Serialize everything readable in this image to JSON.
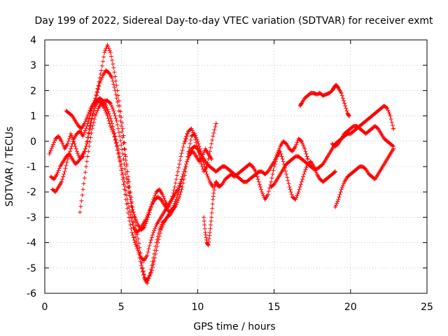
{
  "chart_data": {
    "type": "scatter",
    "title": "Day 199 of 2022, Sidereal Day-to-day VTEC variation (SDTVAR) for receiver exmt",
    "xlabel": "GPS time / hours",
    "ylabel": "SDTVAR / TECUs",
    "xlim": [
      0,
      25
    ],
    "ylim": [
      -6,
      4
    ],
    "xticks": [
      0,
      5,
      10,
      15,
      20,
      25
    ],
    "yticks": [
      -6,
      -5,
      -4,
      -3,
      -2,
      -1,
      0,
      1,
      2,
      3,
      4
    ],
    "grid": true,
    "marker": "+",
    "color": "#ff0000",
    "series": [
      {
        "x": [
          0.3,
          0.5,
          0.7,
          0.9,
          1.1,
          1.3,
          1.5,
          1.7,
          1.9,
          2.1,
          2.3,
          2.5,
          2.7,
          2.9,
          3.1,
          3.3,
          3.5,
          3.7,
          3.9,
          4.1,
          4.3,
          4.5,
          4.7,
          4.9,
          5.1,
          5.3,
          5.5,
          5.7,
          5.9,
          6.1,
          6.3,
          6.5,
          6.7,
          6.9,
          7.1,
          7.3,
          7.5,
          7.7,
          7.9,
          8.1,
          8.3,
          8.5,
          8.7,
          8.9,
          9.1,
          9.3,
          9.5,
          9.7,
          9.9,
          10.1,
          10.3,
          10.5,
          10.7,
          10.9
        ],
        "y": [
          -0.5,
          -0.2,
          0.1,
          0.2,
          0.0,
          -0.3,
          -0.1,
          0.3,
          0.0,
          -0.4,
          -0.7,
          -0.6,
          -0.2,
          0.5,
          1.0,
          1.4,
          1.6,
          1.5,
          1.3,
          1.0,
          0.6,
          0.3,
          -0.2,
          -0.8,
          -1.5,
          -2.3,
          -3.0,
          -3.6,
          -4.0,
          -4.3,
          -4.6,
          -4.7,
          -4.5,
          -4.0,
          -3.6,
          -3.3,
          -3.1,
          -2.9,
          -2.7,
          -2.5,
          -2.3,
          -2.1,
          -1.9,
          -1.6,
          -1.2,
          -0.8,
          -0.5,
          -0.4,
          -0.6,
          -0.8,
          -0.6,
          -0.3,
          -0.5,
          -0.7
        ]
      },
      {
        "x": [
          0.4,
          0.6,
          0.8,
          1.0,
          1.2,
          1.4,
          1.6,
          1.8,
          2.0,
          2.2,
          2.4,
          2.6,
          2.8,
          3.0,
          3.2,
          3.4,
          3.6,
          3.8,
          4.0,
          4.2,
          4.4,
          4.6,
          4.8,
          5.0,
          5.2,
          5.4,
          5.6,
          5.8,
          6.0,
          6.2,
          6.4,
          6.6,
          6.8,
          7.0,
          7.2,
          7.4,
          7.6,
          7.8,
          8.0,
          8.2,
          8.4,
          8.6,
          8.8,
          9.0,
          9.2,
          9.4,
          9.6,
          9.8,
          10.0,
          10.2,
          10.4,
          10.6,
          10.8,
          11.0
        ],
        "y": [
          -1.4,
          -1.5,
          -1.3,
          -1.0,
          -0.8,
          -0.6,
          -0.5,
          -0.7,
          -0.9,
          -0.8,
          -0.6,
          -0.4,
          0.0,
          0.6,
          1.2,
          1.8,
          2.3,
          2.6,
          2.8,
          2.7,
          2.5,
          2.0,
          1.4,
          0.6,
          -0.3,
          -1.2,
          -2.0,
          -2.8,
          -3.5,
          -4.2,
          -5.0,
          -5.5,
          -5.4,
          -5.1,
          -4.6,
          -4.0,
          -3.5,
          -3.2,
          -3.0,
          -2.9,
          -2.7,
          -2.5,
          -2.2,
          -1.8,
          -1.2,
          -0.4,
          0.2,
          0.3,
          0.0,
          -0.4,
          -0.9,
          -1.3,
          -1.6,
          -1.8
        ]
      },
      {
        "x": [
          0.5,
          0.7,
          0.9,
          1.1,
          1.3,
          1.5,
          1.7,
          1.9,
          2.1,
          2.3,
          2.5,
          2.7,
          2.9,
          3.1,
          3.3,
          3.5,
          3.7,
          3.9,
          4.1,
          4.3,
          4.5,
          4.7,
          4.9,
          5.1,
          5.3,
          5.5,
          5.7,
          5.9,
          6.1,
          6.3,
          6.5,
          6.7,
          6.9,
          7.1,
          7.3,
          7.5,
          7.7,
          7.9,
          8.1,
          8.3,
          8.5
        ],
        "y": [
          -1.9,
          -2.0,
          -1.8,
          -1.6,
          -1.2,
          -0.7,
          -0.3,
          0.1,
          0.3,
          0.4,
          0.2,
          0.5,
          0.9,
          1.3,
          1.7,
          2.2,
          2.8,
          3.5,
          3.8,
          3.5,
          2.9,
          2.2,
          1.4,
          0.5,
          -0.6,
          -1.8,
          -2.8,
          -3.6,
          -4.3,
          -4.9,
          -5.4,
          -5.6,
          -5.2,
          -4.6,
          -4.0,
          -3.5,
          -3.2,
          -3.1,
          -2.9,
          -2.7,
          -2.6
        ]
      },
      {
        "x": [
          1.4,
          1.6,
          1.8,
          2.0,
          2.2,
          2.4,
          2.6,
          2.8,
          3.0,
          3.2,
          3.4,
          3.6,
          3.8,
          4.0,
          4.2,
          4.4,
          4.6,
          4.8,
          5.0,
          5.2,
          5.4,
          5.6,
          5.8,
          6.0,
          6.2,
          6.4,
          6.6,
          6.8,
          7.0,
          7.2,
          7.4,
          7.6,
          7.8,
          8.0,
          8.2,
          8.4,
          8.6,
          8.8,
          9.0
        ],
        "y": [
          1.2,
          1.1,
          1.0,
          0.8,
          0.6,
          0.5,
          0.7,
          1.0,
          1.3,
          1.5,
          1.6,
          1.7,
          1.6,
          1.4,
          1.1,
          0.7,
          0.2,
          -0.3,
          -0.9,
          -1.6,
          -2.3,
          -2.9,
          -3.4,
          -3.6,
          -3.5,
          -3.3,
          -3.1,
          -2.8,
          -2.5,
          -2.3,
          -2.2,
          -2.3,
          -2.5,
          -2.7,
          -2.8,
          -2.6,
          -2.3,
          -1.9,
          -1.4
        ]
      },
      {
        "x": [
          2.3,
          2.5,
          2.7,
          2.9,
          3.1,
          3.3,
          3.5,
          3.7,
          3.9,
          4.1,
          4.3,
          4.5,
          4.7,
          4.9,
          5.1,
          5.3,
          5.5,
          5.7,
          5.9,
          6.1,
          6.3,
          6.5,
          6.7,
          6.9,
          7.1,
          7.3,
          7.5,
          7.7,
          7.9,
          8.1,
          8.3,
          8.5,
          8.7,
          8.9,
          9.1,
          9.3
        ],
        "y": [
          -2.8,
          -1.9,
          -1.0,
          -0.2,
          0.5,
          1.0,
          1.3,
          1.5,
          1.6,
          1.6,
          1.5,
          1.2,
          0.8,
          0.2,
          -0.5,
          -1.3,
          -2.0,
          -2.6,
          -3.0,
          -3.3,
          -3.5,
          -3.4,
          -3.1,
          -2.7,
          -2.3,
          -2.0,
          -1.9,
          -2.1,
          -2.4,
          -2.6,
          -2.3,
          -1.8,
          -1.2,
          -0.6,
          -0.1,
          0.3
        ]
      },
      {
        "x": [
          9.2,
          9.4,
          9.6,
          9.8,
          10.0,
          10.2,
          10.4,
          10.6,
          10.8,
          11.0,
          11.2
        ],
        "y": [
          0.0,
          0.4,
          0.5,
          0.2,
          -0.3,
          -0.8,
          -1.2,
          -1.0,
          -0.4,
          0.2,
          0.7
        ]
      },
      {
        "x": [
          10.4,
          10.5,
          10.6,
          10.7,
          10.8,
          10.9,
          11.0,
          11.1,
          11.2,
          11.3,
          11.4,
          11.6,
          11.8,
          12.0,
          12.2,
          12.4,
          12.6,
          12.8,
          13.0,
          13.2,
          13.4,
          13.6,
          13.8,
          14.0,
          14.2,
          14.4,
          14.6,
          14.8,
          15.0,
          15.2,
          15.4,
          15.6,
          15.8,
          16.0,
          16.2,
          16.4,
          16.6,
          16.8,
          17.0,
          17.2,
          17.4,
          17.6,
          17.8,
          18.0,
          18.2,
          18.4,
          18.6,
          18.8,
          19.0
        ],
        "y": [
          -3.0,
          -3.6,
          -4.0,
          -4.1,
          -3.6,
          -3.0,
          -2.3,
          -1.8,
          -1.6,
          -1.7,
          -1.8,
          -1.7,
          -1.5,
          -1.4,
          -1.3,
          -1.4,
          -1.3,
          -1.2,
          -1.1,
          -1.0,
          -0.9,
          -1.0,
          -1.2,
          -1.6,
          -2.0,
          -2.3,
          -2.1,
          -1.6,
          -1.0,
          -0.6,
          -0.4,
          -0.8,
          -1.3,
          -1.8,
          -2.2,
          -2.3,
          -2.0,
          -1.6,
          -1.2,
          -0.9,
          -0.8,
          -1.0,
          -1.3,
          -1.5,
          -1.6,
          -1.5,
          -1.4,
          -1.3,
          -1.2
        ]
      },
      {
        "x": [
          9.4,
          9.6,
          9.8,
          10.0,
          10.2,
          10.4,
          10.6,
          10.8,
          11.0,
          11.2,
          11.4,
          11.6,
          11.8,
          12.0,
          12.2,
          12.4,
          12.6,
          12.8,
          13.0,
          13.2,
          13.4,
          13.6,
          13.8,
          14.0,
          14.2,
          14.4,
          14.6,
          14.8,
          15.0,
          15.2,
          15.4,
          15.6,
          15.8,
          16.0,
          16.2,
          16.4,
          16.6,
          16.8,
          17.0,
          17.2
        ],
        "y": [
          -0.5,
          -0.3,
          -0.2,
          -0.3,
          -0.5,
          -0.7,
          -0.9,
          -1.0,
          -1.1,
          -1.2,
          -1.1,
          -1.0,
          -1.0,
          -1.1,
          -1.2,
          -1.3,
          -1.4,
          -1.5,
          -1.6,
          -1.6,
          -1.5,
          -1.4,
          -1.3,
          -1.2,
          -1.2,
          -1.3,
          -1.2,
          -1.0,
          -0.8,
          -0.5,
          -0.2,
          0.0,
          -0.1,
          -0.3,
          -0.4,
          -0.2,
          0.1,
          0.0,
          -0.3,
          -0.7
        ]
      },
      {
        "x": [
          14.8,
          15.0,
          15.2,
          15.4,
          15.6,
          15.8,
          16.0,
          16.2,
          16.4,
          16.6,
          16.8,
          17.0,
          17.2,
          17.4,
          17.6,
          17.8,
          18.0,
          18.2,
          18.4,
          18.6,
          18.8,
          19.0,
          19.2,
          19.4,
          19.6,
          19.8,
          20.0,
          20.2,
          20.4,
          20.6,
          20.8,
          21.0,
          21.2,
          21.4,
          21.6,
          21.8,
          22.0,
          22.2,
          22.4,
          22.6,
          22.8
        ],
        "y": [
          -1.8,
          -1.7,
          -1.5,
          -1.3,
          -1.1,
          -0.9,
          -0.8,
          -0.7,
          -0.6,
          -0.6,
          -0.7,
          -0.8,
          -0.9,
          -1.0,
          -1.1,
          -1.1,
          -1.0,
          -0.9,
          -0.7,
          -0.5,
          -0.3,
          -0.1,
          0.0,
          0.1,
          0.2,
          0.3,
          0.3,
          0.4,
          0.5,
          0.6,
          0.7,
          0.8,
          0.9,
          1.0,
          1.1,
          1.2,
          1.3,
          1.4,
          1.3,
          1.0,
          0.5
        ]
      },
      {
        "x": [
          16.7,
          16.8,
          17.0,
          17.2,
          17.4,
          17.6,
          17.8,
          18.0,
          18.2,
          18.4,
          18.6,
          18.8,
          18.9,
          19.0,
          19.1,
          19.2,
          19.4,
          19.6,
          19.8,
          19.9
        ],
        "y": [
          1.4,
          1.5,
          1.7,
          1.8,
          1.9,
          1.9,
          1.85,
          1.9,
          1.8,
          1.85,
          1.9,
          2.0,
          2.1,
          2.2,
          2.2,
          2.1,
          1.9,
          1.5,
          1.1,
          1.0
        ]
      },
      {
        "x": [
          19.0,
          19.2,
          19.4,
          19.6,
          19.8,
          20.0,
          20.2,
          20.4,
          20.6,
          20.8,
          21.0,
          21.2,
          21.4,
          21.6,
          21.8,
          22.0,
          22.2,
          22.4,
          22.6,
          22.8
        ],
        "y": [
          -2.6,
          -2.3,
          -1.9,
          -1.6,
          -1.4,
          -1.3,
          -1.2,
          -1.1,
          -1.0,
          -1.0,
          -1.1,
          -1.3,
          -1.4,
          -1.5,
          -1.3,
          -1.1,
          -0.9,
          -0.7,
          -0.5,
          -0.3
        ]
      },
      {
        "x": [
          18.8,
          19.0,
          19.2,
          19.4,
          19.6,
          19.8,
          20.0,
          20.2,
          20.4,
          20.6,
          20.8,
          21.0,
          21.2,
          21.4,
          21.6,
          21.8,
          22.0,
          22.2,
          22.4,
          22.6,
          22.8
        ],
        "y": [
          -0.1,
          -0.2,
          -0.1,
          0.1,
          0.3,
          0.4,
          0.5,
          0.6,
          0.6,
          0.5,
          0.4,
          0.3,
          0.4,
          0.5,
          0.6,
          0.5,
          0.3,
          0.1,
          0.0,
          -0.1,
          -0.2
        ]
      }
    ]
  }
}
